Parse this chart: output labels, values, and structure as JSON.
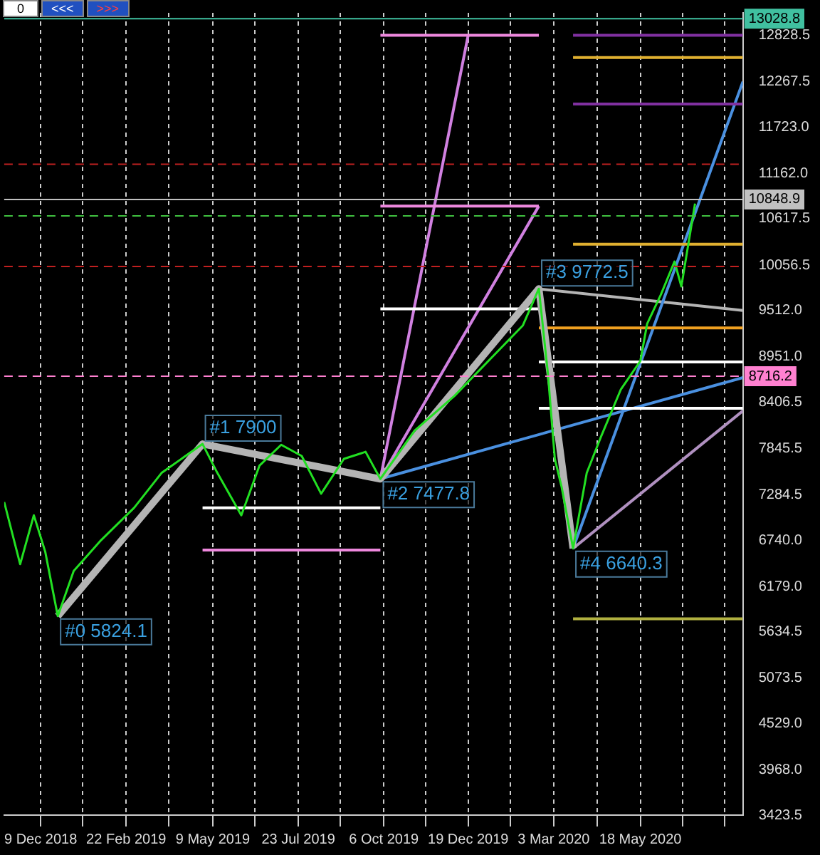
{
  "chart_data": {
    "type": "line",
    "xlim": [
      "2018-11-07",
      "2020-08-16"
    ],
    "ylim": [
      3423.5,
      13100
    ],
    "xticks": [
      {
        "value": "2018-12-09",
        "label": "9 Dec 2018"
      },
      {
        "value": "2019-01-15",
        "label": null
      },
      {
        "value": "2019-02-22",
        "label": "22 Feb 2019"
      },
      {
        "value": "2019-03-31",
        "label": null
      },
      {
        "value": "2019-05-09",
        "label": "9 May 2019"
      },
      {
        "value": "2019-06-15",
        "label": null
      },
      {
        "value": "2019-07-23",
        "label": "23 Jul 2019"
      },
      {
        "value": "2019-08-29",
        "label": null
      },
      {
        "value": "2019-10-06",
        "label": "6 Oct 2019"
      },
      {
        "value": "2019-11-12",
        "label": null
      },
      {
        "value": "2019-12-19",
        "label": "19 Dec 2019"
      },
      {
        "value": "2020-01-25",
        "label": null
      },
      {
        "value": "2020-03-03",
        "label": "3 Mar 2020"
      },
      {
        "value": "2020-04-10",
        "label": null
      },
      {
        "value": "2020-05-18",
        "label": "18 May 2020"
      },
      {
        "value": "2020-06-24",
        "label": null
      },
      {
        "value": "2020-07-31",
        "label": null
      }
    ],
    "yticks": [
      {
        "value": 3423.5,
        "label": "3423.5"
      },
      {
        "value": 3968,
        "label": "3968.0"
      },
      {
        "value": 4529,
        "label": "4529.0"
      },
      {
        "value": 5073.5,
        "label": "5073.5"
      },
      {
        "value": 5634.5,
        "label": "5634.5"
      },
      {
        "value": 6179,
        "label": "6179.0"
      },
      {
        "value": 6740,
        "label": "6740.0"
      },
      {
        "value": 7284.5,
        "label": "7284.5"
      },
      {
        "value": 7845.5,
        "label": "7845.5"
      },
      {
        "value": 8406.5,
        "label": "8406.5"
      },
      {
        "value": 8951,
        "label": "8951.0"
      },
      {
        "value": 9512,
        "label": "9512.0"
      },
      {
        "value": 10056.5,
        "label": "10056.5"
      },
      {
        "value": 10617.5,
        "label": "10617.5"
      },
      {
        "value": 11162,
        "label": "11162.0"
      },
      {
        "value": 11723,
        "label": "11723.0"
      },
      {
        "value": 12267.5,
        "label": "12267.5"
      },
      {
        "value": 12828.5,
        "label": "12828.5"
      }
    ],
    "grid": "x",
    "legend": false,
    "marker": "none",
    "series": [
      {
        "color": "#22e022",
        "x": [
          "2018-11-07",
          "2018-11-21",
          "2018-12-03",
          "2018-12-13",
          "2018-12-24",
          "2019-01-07",
          "2019-01-31",
          "2019-03-01",
          "2019-03-25",
          "2019-04-30",
          "2019-05-13",
          "2019-06-03",
          "2019-06-19",
          "2019-07-08",
          "2019-07-26",
          "2019-08-12",
          "2019-09-01",
          "2019-09-20",
          "2019-10-03",
          "2019-11-02",
          "2019-12-07",
          "2020-01-12",
          "2020-02-05",
          "2020-02-19",
          "2020-02-27",
          "2020-03-04",
          "2020-03-10",
          "2020-03-20",
          "2020-04-01",
          "2020-04-13",
          "2020-05-01",
          "2020-05-18",
          "2020-05-24",
          "2020-06-05",
          "2020-06-17",
          "2020-06-23",
          "2020-06-29",
          "2020-07-05"
        ],
        "values": [
          7200,
          6450,
          7040,
          6600,
          5824.1,
          6370,
          6740,
          7130,
          7550,
          7900,
          7550,
          7040,
          7640,
          7890,
          7755,
          7300,
          7720,
          7805,
          7477.8,
          8060,
          8480,
          8990,
          9330,
          9772.5,
          8740,
          7720,
          7380,
          6640.3,
          7550,
          7970,
          8560,
          8900,
          9350,
          9700,
          10100,
          9800,
          10300,
          10800
        ]
      },
      {
        "color": "#b4b4b4",
        "x": [
          "2018-12-24",
          "2019-04-30",
          "2019-10-03",
          "2020-02-19",
          "2020-03-20"
        ],
        "values": [
          5824.1,
          7900,
          7477.8,
          9772.5,
          6640.3
        ]
      },
      {
        "color": "#ffffff",
        "x": [
          "2019-04-30",
          "2019-10-03"
        ],
        "values": [
          7130,
          7130
        ]
      },
      {
        "color": "#ee88dd",
        "x": [
          "2019-04-30",
          "2019-10-03"
        ],
        "values": [
          6620,
          6620
        ]
      },
      {
        "color": "#ffffff",
        "x": [
          "2019-10-03",
          "2020-02-19"
        ],
        "values": [
          9530,
          9530
        ]
      },
      {
        "color": "#ee88dd",
        "x": [
          "2019-10-03",
          "2020-02-19"
        ],
        "values": [
          12830,
          12830
        ]
      },
      {
        "color": "#ee88dd",
        "x": [
          "2019-10-03",
          "2020-02-19"
        ],
        "values": [
          10770,
          10770
        ]
      },
      {
        "color": "#f0a020",
        "x": [
          "2020-02-19",
          "2020-08-16"
        ],
        "values": [
          9300,
          9300
        ]
      },
      {
        "color": "#ffffff",
        "x": [
          "2020-02-19",
          "2020-08-16"
        ],
        "values": [
          8890,
          8890
        ]
      },
      {
        "color": "#ffffff",
        "x": [
          "2020-02-19",
          "2020-08-16"
        ],
        "values": [
          8330,
          8330
        ]
      },
      {
        "color": "#e0b030",
        "x": [
          "2020-03-20",
          "2020-08-16"
        ],
        "values": [
          10310,
          10310
        ]
      },
      {
        "color": "#e0b030",
        "x": [
          "2020-03-20",
          "2020-08-16"
        ],
        "values": [
          12560,
          12560
        ]
      },
      {
        "color": "#8030a0",
        "x": [
          "2020-03-20",
          "2020-08-16"
        ],
        "values": [
          12000,
          12000
        ]
      },
      {
        "color": "#8030a0",
        "x": [
          "2020-03-20",
          "2020-08-16"
        ],
        "values": [
          12830,
          12830
        ]
      },
      {
        "color": "#b0b040",
        "x": [
          "2020-03-20",
          "2020-08-16"
        ],
        "values": [
          5790,
          5790
        ]
      },
      {
        "color": "#4a90e0",
        "x": [
          "2020-03-20",
          "2020-08-16"
        ],
        "values": [
          6640,
          12270
        ]
      },
      {
        "color": "#4a90e0",
        "x": [
          "2019-10-03",
          "2020-08-16"
        ],
        "values": [
          7480,
          8700
        ]
      },
      {
        "color": "#b090c0",
        "x": [
          "2020-03-20",
          "2020-08-16"
        ],
        "values": [
          6640,
          8300
        ]
      },
      {
        "color": "#b4b4b4",
        "x": [
          "2020-02-19",
          "2020-08-16"
        ],
        "values": [
          9770,
          9510
        ]
      },
      {
        "color": "#d080e0",
        "x": [
          "2019-10-03",
          "2019-12-19"
        ],
        "values": [
          7480,
          12830
        ]
      },
      {
        "color": "#d080e0",
        "x": [
          "2019-10-03",
          "2020-02-19"
        ],
        "values": [
          7480,
          10770
        ]
      }
    ],
    "ref_lines": [
      {
        "axis": "y",
        "value": 13028.8,
        "label": "13028.8",
        "color": "#40c0a0"
      },
      {
        "axis": "y",
        "value": 10848.9,
        "label": "10848.9",
        "color": "#c0c0c0"
      },
      {
        "axis": "y",
        "value": 8716.2,
        "label": "8716.2",
        "color": "#ff80d0",
        "line_style": "dashed"
      },
      {
        "axis": "y",
        "value": 11274,
        "color": "#c02020",
        "line_style": "dashed"
      },
      {
        "axis": "y",
        "value": 10040,
        "color": "#c02020",
        "line_style": "dashed"
      },
      {
        "axis": "y",
        "value": 10650,
        "color": "#40c040",
        "line_style": "dashed"
      }
    ],
    "annotations": [
      "0",
      "<<<",
      ">>>",
      {
        "text": "#0 5824.1",
        "x": "2018-12-24",
        "y": 5824.1
      },
      {
        "text": "#1 7900",
        "x": "2019-04-30",
        "y": 7900
      },
      {
        "text": "#2 7477.8",
        "x": "2019-10-03",
        "y": 7477.8
      },
      {
        "text": "#3 9772.5",
        "x": "2020-02-19",
        "y": 9772.5
      },
      {
        "text": "#4 6640.3",
        "x": "2020-03-20",
        "y": 6640.3
      }
    ]
  }
}
